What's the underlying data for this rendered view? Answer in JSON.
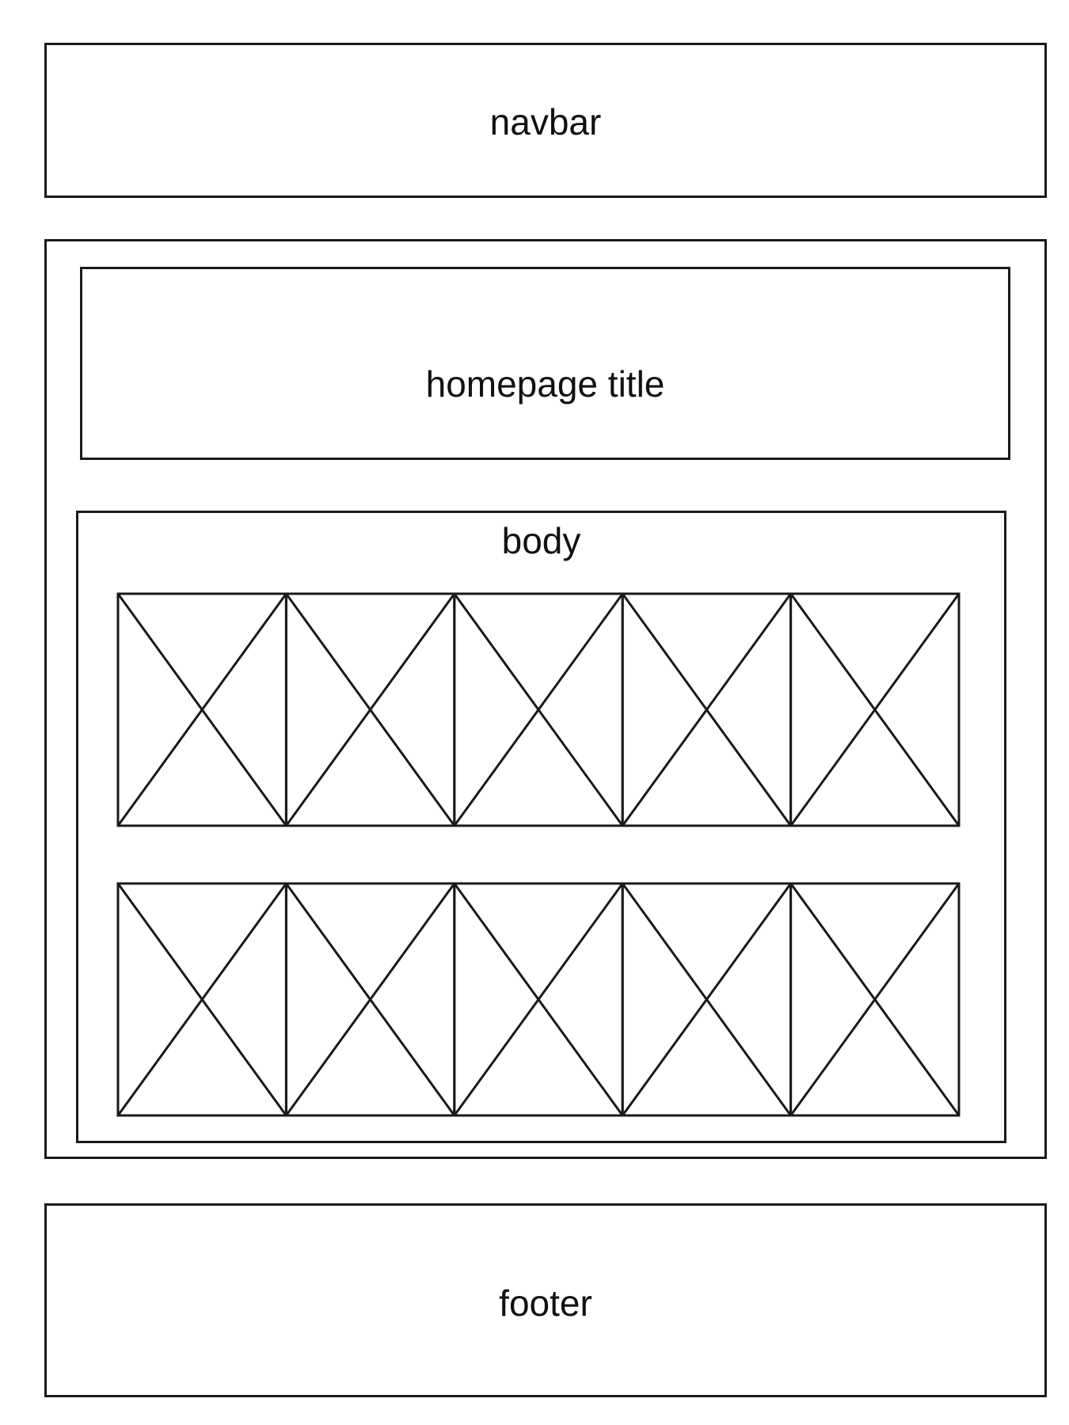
{
  "navbar": {
    "label": "navbar"
  },
  "title_section": {
    "label": "homepage title"
  },
  "body_section": {
    "label": "body",
    "image_rows": [
      {
        "placeholder_count": 5,
        "placeholder_icon": "image-placeholder-icon"
      },
      {
        "placeholder_count": 5,
        "placeholder_icon": "image-placeholder-icon"
      }
    ]
  },
  "footer": {
    "label": "footer"
  },
  "colors": {
    "stroke": "#1a1a1a",
    "background": "#ffffff"
  }
}
